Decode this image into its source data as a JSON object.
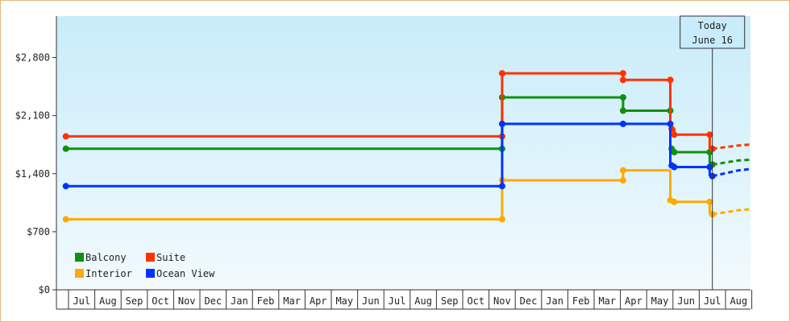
{
  "chart_data": {
    "type": "line",
    "title": "",
    "xlabel": "",
    "ylabel": "",
    "ylim": [
      0,
      3300
    ],
    "y_ticks": [
      {
        "value": 0,
        "label": "$0"
      },
      {
        "value": 700,
        "label": "$700"
      },
      {
        "value": 1400,
        "label": "$1,400"
      },
      {
        "value": 2100,
        "label": "$2,100"
      },
      {
        "value": 2800,
        "label": "$2,800"
      }
    ],
    "x_ticks": [
      "Jul",
      "Aug",
      "Sep",
      "Oct",
      "Nov",
      "Dec",
      "Jan",
      "Feb",
      "Mar",
      "Apr",
      "May",
      "Jun",
      "Jul",
      "Aug",
      "Sep",
      "Oct",
      "Nov",
      "Dec",
      "Jan",
      "Feb",
      "Mar",
      "Apr",
      "May",
      "Jun",
      "Jul",
      "Aug"
    ],
    "today_marker": {
      "line1": "Today",
      "line2": "June 16",
      "x": 24.5
    },
    "legend_position": "bottom-left",
    "series": [
      {
        "name": "Balcony",
        "color": "#109010",
        "points": [
          [
            -0.1,
            1700
          ],
          [
            16.5,
            1700
          ],
          [
            16.5,
            2320
          ],
          [
            21.1,
            2320
          ],
          [
            21.1,
            2160
          ],
          [
            22.9,
            2160
          ],
          [
            22.9,
            1660
          ],
          [
            24.4,
            1660
          ],
          [
            24.4,
            1510
          ]
        ],
        "markers": [
          [
            -0.1,
            1700
          ],
          [
            16.5,
            1700
          ],
          [
            16.5,
            2320
          ],
          [
            21.1,
            2320
          ],
          [
            21.1,
            2160
          ],
          [
            22.9,
            2160
          ],
          [
            22.95,
            1700
          ],
          [
            23.05,
            1660
          ],
          [
            24.4,
            1660
          ],
          [
            24.5,
            1510
          ]
        ],
        "projection": [
          [
            24.5,
            1510
          ],
          [
            25.5,
            1560
          ],
          [
            27,
            1590
          ],
          [
            28,
            1620
          ],
          [
            28.5,
            1640
          ]
        ]
      },
      {
        "name": "Suite",
        "color": "#ff3300",
        "points": [
          [
            -0.1,
            1850
          ],
          [
            16.5,
            1850
          ],
          [
            16.5,
            2610
          ],
          [
            21.1,
            2610
          ],
          [
            21.1,
            2530
          ],
          [
            22.9,
            2530
          ],
          [
            22.9,
            1940
          ],
          [
            23.05,
            1940
          ],
          [
            23.05,
            1870
          ],
          [
            24.4,
            1870
          ],
          [
            24.4,
            1700
          ]
        ],
        "markers": [
          [
            -0.1,
            1850
          ],
          [
            16.5,
            1850
          ],
          [
            16.5,
            2610
          ],
          [
            21.1,
            2610
          ],
          [
            21.1,
            2530
          ],
          [
            22.9,
            2530
          ],
          [
            22.95,
            1940
          ],
          [
            23.05,
            1870
          ],
          [
            24.4,
            1870
          ],
          [
            24.5,
            1700
          ]
        ],
        "projection": [
          [
            24.5,
            1700
          ],
          [
            25.5,
            1740
          ],
          [
            27,
            1780
          ],
          [
            28,
            1810
          ],
          [
            28.5,
            1830
          ]
        ]
      },
      {
        "name": "Interior",
        "color": "#ffaa00",
        "points": [
          [
            -0.1,
            850
          ],
          [
            16.5,
            850
          ],
          [
            16.5,
            1320
          ],
          [
            21.1,
            1320
          ],
          [
            21.1,
            1440
          ],
          [
            22.9,
            1440
          ],
          [
            22.9,
            1080
          ],
          [
            23.05,
            1080
          ],
          [
            23.05,
            1060
          ],
          [
            24.4,
            1060
          ],
          [
            24.4,
            910
          ]
        ],
        "markers": [
          [
            -0.1,
            850
          ],
          [
            16.5,
            850
          ],
          [
            16.5,
            1320
          ],
          [
            21.1,
            1320
          ],
          [
            21.1,
            1440
          ],
          [
            22.9,
            1080
          ],
          [
            23.05,
            1060
          ],
          [
            24.4,
            1060
          ],
          [
            24.5,
            910
          ]
        ],
        "projection": [
          [
            24.5,
            910
          ],
          [
            25.5,
            960
          ],
          [
            27,
            1000
          ],
          [
            28,
            1040
          ],
          [
            28.5,
            1060
          ]
        ]
      },
      {
        "name": "Ocean View",
        "color": "#0033ff",
        "points": [
          [
            -0.1,
            1250
          ],
          [
            16.5,
            1250
          ],
          [
            16.5,
            2000
          ],
          [
            21.1,
            2000
          ],
          [
            22.9,
            2000
          ],
          [
            22.9,
            1500
          ],
          [
            23.05,
            1500
          ],
          [
            23.05,
            1480
          ],
          [
            24.4,
            1480
          ],
          [
            24.4,
            1370
          ]
        ],
        "markers": [
          [
            -0.1,
            1250
          ],
          [
            16.5,
            1250
          ],
          [
            16.5,
            2000
          ],
          [
            21.1,
            2000
          ],
          [
            22.9,
            2000
          ],
          [
            22.95,
            1500
          ],
          [
            23.05,
            1480
          ],
          [
            24.4,
            1480
          ],
          [
            24.5,
            1370
          ]
        ],
        "projection": [
          [
            24.5,
            1370
          ],
          [
            25.5,
            1440
          ],
          [
            27,
            1490
          ],
          [
            28,
            1530
          ],
          [
            28.5,
            1560
          ]
        ]
      }
    ],
    "legend": [
      {
        "name": "Balcony",
        "color": "#109010"
      },
      {
        "name": "Suite",
        "color": "#ff3300"
      },
      {
        "name": "Interior",
        "color": "#ffaa00"
      },
      {
        "name": "Ocean View",
        "color": "#0033ff"
      }
    ]
  }
}
